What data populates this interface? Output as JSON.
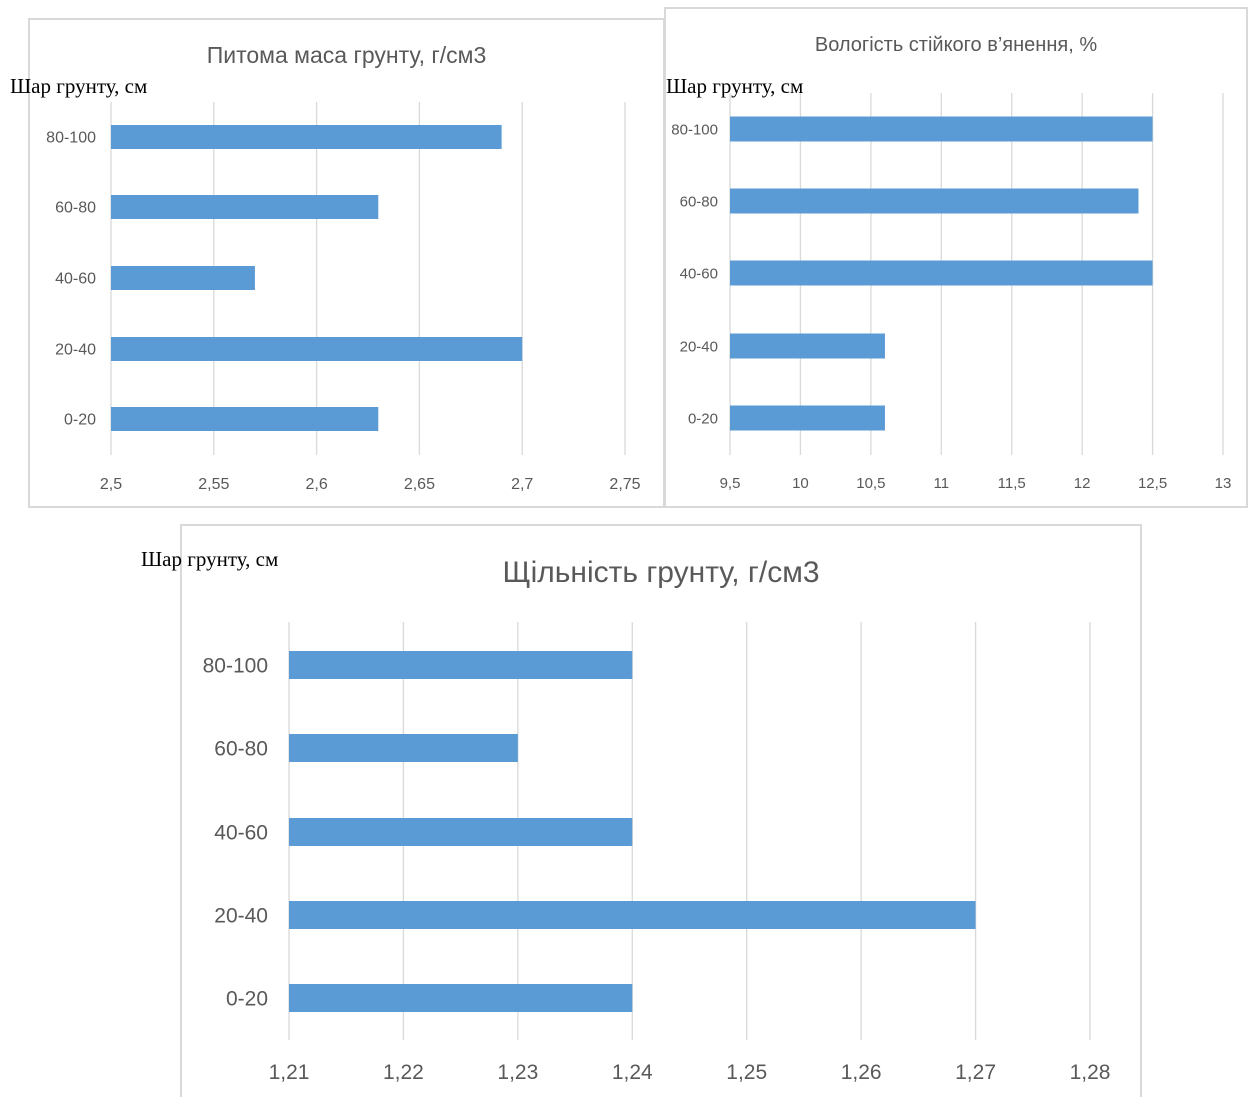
{
  "layer_label": "Шар грунту, см",
  "colors": {
    "bar": "#5b9bd5",
    "grid": "#d9d9d9",
    "text": "#595959",
    "border": "#d9d9d9"
  },
  "chart_data": [
    {
      "type": "bar",
      "orientation": "horizontal",
      "title": "Питома маса грунту, г/см3",
      "ylabel": "Шар грунту, см",
      "categories": [
        "0-20",
        "20-40",
        "40-60",
        "60-80",
        "80-100"
      ],
      "values": [
        2.63,
        2.7,
        2.57,
        2.63,
        2.69
      ],
      "xlim": [
        2.5,
        2.75
      ],
      "x_ticks": [
        "2,5",
        "2,55",
        "2,6",
        "2,65",
        "2,7",
        "2,75"
      ],
      "grid": true,
      "legend": "none"
    },
    {
      "type": "bar",
      "orientation": "horizontal",
      "title": "Вологість стійкого в’янення, %",
      "ylabel": "Шар грунту, см",
      "categories": [
        "0-20",
        "20-40",
        "40-60",
        "60-80",
        "80-100"
      ],
      "values": [
        10.6,
        10.6,
        12.5,
        12.4,
        12.5
      ],
      "xlim": [
        9.5,
        13
      ],
      "x_ticks": [
        "9,5",
        "10",
        "10,5",
        "11",
        "11,5",
        "12",
        "12,5",
        "13"
      ],
      "grid": true,
      "legend": "none"
    },
    {
      "type": "bar",
      "orientation": "horizontal",
      "title": "Щільність грунту, г/см3",
      "ylabel": "Шар грунту, см",
      "categories": [
        "0-20",
        "20-40",
        "40-60",
        "60-80",
        "80-100"
      ],
      "values": [
        1.24,
        1.27,
        1.24,
        1.23,
        1.24
      ],
      "xlim": [
        1.21,
        1.28
      ],
      "x_ticks": [
        "1,21",
        "1,22",
        "1,23",
        "1,24",
        "1,25",
        "1,26",
        "1,27",
        "1,28"
      ],
      "grid": true,
      "legend": "none"
    }
  ]
}
